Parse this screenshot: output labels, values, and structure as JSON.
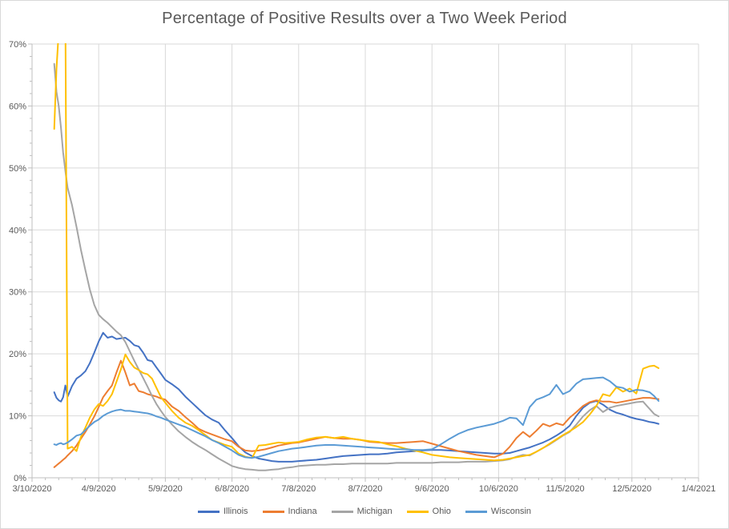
{
  "chart": {
    "title": "Percentage of Positive Results over a Two Week Period",
    "title_color": "#595959",
    "axis_label_color": "#595959",
    "gridline_color": "#D9D9D9",
    "axis_line_color": "#BFBFBF",
    "background": "#FFFFFF"
  },
  "chart_data": {
    "type": "line",
    "title": "Percentage of Positive Results over a Two Week Period",
    "xlabel": "",
    "ylabel": "",
    "grid": true,
    "legend_position": "bottom",
    "ylim": [
      0,
      70
    ],
    "y_major_unit_pct": 10,
    "y_minor_unit_pct": 2,
    "y_tick_labels": [
      "0%",
      "10%",
      "20%",
      "30%",
      "40%",
      "50%",
      "60%",
      "70%"
    ],
    "x_axis_start": "3/10/2020",
    "x_axis_end": "1/4/2021",
    "x_tick_labels": [
      "3/10/2020",
      "4/9/2020",
      "5/9/2020",
      "6/8/2020",
      "7/8/2020",
      "8/7/2020",
      "9/6/2020",
      "10/6/2020",
      "11/5/2020",
      "12/5/2020",
      "1/4/2021"
    ],
    "x_tick_days": [
      0,
      30,
      60,
      90,
      120,
      150,
      180,
      210,
      240,
      270,
      300
    ],
    "x_minor_unit_days": 6,
    "x_days_note": "days since 3/10/2020; series values are % positive; Ohio values of 75 represent an early spike clipped above the 70% axis maximum",
    "x_days": [
      10,
      11,
      12,
      13,
      14,
      15,
      16,
      18,
      20,
      22,
      24,
      26,
      28,
      30,
      32,
      34,
      36,
      38,
      40,
      42,
      44,
      46,
      48,
      50,
      52,
      54,
      56,
      58,
      60,
      63,
      66,
      69,
      72,
      75,
      78,
      81,
      84,
      87,
      90,
      93,
      96,
      99,
      102,
      105,
      108,
      111,
      114,
      117,
      120,
      124,
      128,
      132,
      136,
      140,
      144,
      148,
      152,
      156,
      160,
      164,
      168,
      172,
      176,
      180,
      184,
      188,
      192,
      196,
      200,
      204,
      208,
      212,
      215,
      218,
      221,
      224,
      227,
      230,
      233,
      236,
      239,
      242,
      245,
      248,
      251,
      254,
      257,
      260,
      263,
      266,
      269,
      272,
      275,
      278,
      280,
      282
    ],
    "series": [
      {
        "name": "Illinois",
        "color": "#4472C4",
        "values": [
          13.8,
          12.9,
          12.5,
          12.3,
          13.0,
          14.9,
          13.1,
          14.8,
          16.0,
          16.5,
          17.2,
          18.5,
          20.2,
          22.0,
          23.4,
          22.6,
          22.8,
          22.4,
          22.5,
          22.6,
          22.1,
          21.4,
          21.2,
          20.2,
          19.0,
          18.8,
          17.8,
          16.8,
          15.8,
          15.1,
          14.3,
          13.1,
          12.1,
          11.1,
          10.1,
          9.4,
          8.9,
          7.6,
          6.4,
          5.1,
          4.1,
          3.5,
          3.1,
          2.9,
          2.7,
          2.6,
          2.6,
          2.6,
          2.7,
          2.8,
          2.9,
          3.1,
          3.3,
          3.5,
          3.6,
          3.7,
          3.8,
          3.8,
          3.9,
          4.1,
          4.2,
          4.3,
          4.4,
          4.5,
          4.5,
          4.4,
          4.3,
          4.2,
          4.1,
          4.0,
          3.9,
          3.9,
          4.0,
          4.3,
          4.6,
          4.9,
          5.3,
          5.7,
          6.2,
          6.8,
          7.5,
          8.4,
          10.0,
          11.3,
          12.1,
          12.4,
          11.8,
          11.0,
          10.5,
          10.2,
          9.8,
          9.5,
          9.3,
          9.0,
          8.9,
          8.7
        ]
      },
      {
        "name": "Indiana",
        "color": "#ED7D31",
        "values": [
          1.7,
          2.0,
          2.3,
          2.6,
          2.9,
          3.2,
          3.6,
          4.3,
          5.2,
          6.3,
          7.4,
          8.6,
          9.9,
          11.4,
          13.0,
          14.0,
          14.9,
          17.0,
          18.9,
          17.0,
          14.9,
          15.2,
          14.0,
          13.8,
          13.5,
          13.3,
          13.1,
          12.8,
          12.6,
          11.5,
          10.8,
          9.8,
          8.9,
          7.9,
          7.4,
          7.0,
          6.6,
          6.2,
          5.9,
          5.0,
          4.4,
          4.3,
          4.4,
          4.6,
          4.9,
          5.2,
          5.4,
          5.6,
          5.7,
          6.0,
          6.3,
          6.6,
          6.4,
          6.3,
          6.3,
          6.1,
          5.8,
          5.7,
          5.6,
          5.6,
          5.7,
          5.8,
          5.9,
          5.5,
          5.1,
          4.7,
          4.3,
          4.0,
          3.7,
          3.5,
          3.3,
          3.9,
          5.0,
          6.4,
          7.4,
          6.6,
          7.6,
          8.7,
          8.3,
          8.8,
          8.5,
          9.7,
          10.6,
          11.6,
          12.2,
          12.5,
          12.3,
          12.3,
          12.1,
          12.3,
          12.5,
          12.7,
          12.9,
          12.9,
          12.8,
          12.7
        ]
      },
      {
        "name": "Michigan",
        "color": "#A5A5A5",
        "values": [
          66.8,
          62.3,
          60.0,
          56.5,
          52.5,
          49.5,
          46.8,
          44.0,
          40.5,
          36.8,
          33.5,
          30.4,
          27.9,
          26.3,
          25.6,
          25.0,
          24.3,
          23.6,
          23.0,
          21.9,
          20.4,
          18.9,
          17.5,
          16.1,
          14.7,
          13.2,
          11.9,
          10.8,
          9.8,
          8.6,
          7.5,
          6.6,
          5.8,
          5.1,
          4.5,
          3.8,
          3.1,
          2.5,
          1.9,
          1.6,
          1.4,
          1.3,
          1.2,
          1.2,
          1.3,
          1.4,
          1.6,
          1.7,
          1.9,
          2.0,
          2.1,
          2.1,
          2.2,
          2.2,
          2.3,
          2.3,
          2.3,
          2.3,
          2.3,
          2.4,
          2.4,
          2.4,
          2.4,
          2.4,
          2.5,
          2.5,
          2.5,
          2.6,
          2.6,
          2.6,
          2.7,
          2.8,
          3.0,
          3.4,
          3.7,
          3.6,
          4.2,
          4.8,
          5.4,
          6.1,
          6.8,
          7.4,
          8.6,
          9.9,
          10.9,
          11.6,
          10.6,
          11.3,
          11.6,
          11.8,
          12.0,
          12.2,
          12.3,
          11.1,
          10.3,
          9.9
        ]
      },
      {
        "name": "Ohio",
        "color": "#FFC000",
        "values": [
          56.3,
          66.0,
          72.0,
          75.0,
          75.0,
          75.0,
          4.7,
          5.0,
          4.3,
          6.6,
          8.1,
          9.7,
          11.0,
          11.9,
          11.6,
          12.4,
          13.5,
          15.5,
          17.5,
          19.9,
          18.7,
          17.8,
          17.4,
          16.9,
          16.7,
          16.0,
          14.5,
          13.0,
          12.1,
          10.8,
          9.7,
          8.9,
          8.4,
          7.7,
          6.9,
          6.1,
          5.7,
          5.3,
          5.0,
          3.9,
          3.4,
          3.2,
          5.2,
          5.3,
          5.5,
          5.7,
          5.6,
          5.7,
          5.8,
          6.2,
          6.5,
          6.6,
          6.4,
          6.6,
          6.3,
          6.1,
          5.9,
          5.8,
          5.4,
          5.1,
          4.7,
          4.4,
          4.1,
          3.7,
          3.5,
          3.3,
          3.2,
          3.1,
          3.0,
          2.9,
          2.8,
          2.9,
          3.1,
          3.3,
          3.5,
          3.7,
          4.2,
          4.8,
          5.5,
          6.2,
          6.9,
          7.5,
          8.2,
          9.0,
          10.2,
          11.6,
          13.5,
          13.2,
          14.6,
          13.9,
          14.4,
          13.6,
          17.6,
          18.0,
          18.1,
          17.7
        ]
      },
      {
        "name": "Wisconsin",
        "color": "#5B9BD5",
        "values": [
          5.4,
          5.3,
          5.5,
          5.6,
          5.4,
          5.5,
          5.7,
          6.2,
          6.8,
          7.0,
          7.7,
          8.4,
          9.0,
          9.4,
          10.0,
          10.4,
          10.7,
          10.9,
          11.0,
          10.8,
          10.8,
          10.7,
          10.6,
          10.5,
          10.4,
          10.2,
          9.9,
          9.7,
          9.4,
          9.0,
          8.6,
          8.2,
          7.7,
          7.2,
          6.7,
          6.1,
          5.6,
          5.0,
          4.4,
          3.7,
          3.3,
          3.2,
          3.4,
          3.7,
          4.0,
          4.3,
          4.5,
          4.7,
          4.8,
          5.0,
          5.2,
          5.3,
          5.3,
          5.2,
          5.1,
          5.0,
          4.9,
          4.8,
          4.7,
          4.6,
          4.6,
          4.5,
          4.5,
          4.6,
          5.4,
          6.3,
          7.1,
          7.7,
          8.1,
          8.4,
          8.7,
          9.2,
          9.7,
          9.6,
          8.5,
          11.4,
          12.6,
          13.0,
          13.5,
          15.0,
          13.5,
          14.0,
          15.2,
          15.9,
          16.0,
          16.1,
          16.2,
          15.6,
          14.7,
          14.5,
          13.9,
          14.2,
          14.1,
          13.8,
          13.2,
          12.4
        ]
      }
    ]
  },
  "legend": {
    "items": [
      "Illinois",
      "Indiana",
      "Michigan",
      "Ohio",
      "Wisconsin"
    ]
  }
}
